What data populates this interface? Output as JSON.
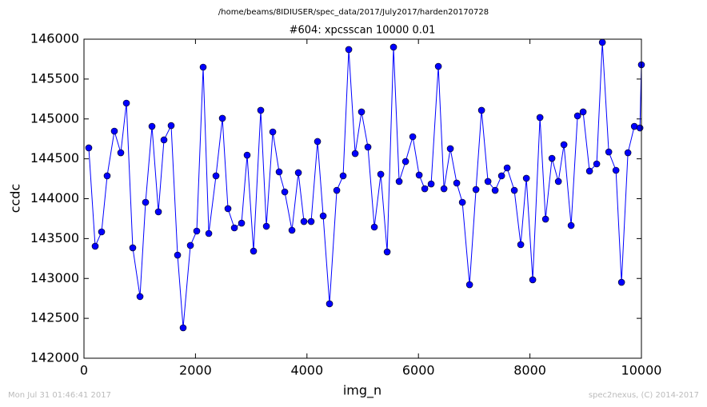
{
  "chart_data": {
    "type": "line",
    "suptitle": "/home/beams/8IDIUSER/spec_data/2017/July2017/harden20170728",
    "title": "#604: xpcsscan 10000 0.01",
    "xlabel": "img_n",
    "ylabel": "ccdc",
    "color": "#0000ff",
    "x": [
      86,
      201,
      316,
      416,
      545,
      660,
      761,
      875,
      1005,
      1105,
      1220,
      1335,
      1435,
      1564,
      1679,
      1779,
      1909,
      2023,
      2138,
      2239,
      2368,
      2483,
      2583,
      2698,
      2827,
      2927,
      3042,
      3171,
      3272,
      3387,
      3501,
      3602,
      3731,
      3846,
      3946,
      4075,
      4190,
      4291,
      4405,
      4535,
      4649,
      4750,
      4865,
      4979,
      5094,
      5209,
      5324,
      5439,
      5553,
      5654,
      5769,
      5898,
      6013,
      6113,
      6228,
      6357,
      6458,
      6572,
      6687,
      6788,
      6917,
      7032,
      7132,
      7247,
      7376,
      7491,
      7591,
      7720,
      7835,
      7936,
      8050,
      8180,
      8280,
      8395,
      8510,
      8610,
      8739,
      8854,
      8954,
      9069,
      9198,
      9299,
      9414,
      9543,
      9643,
      9758,
      9873,
      9973,
      10000
    ],
    "values": [
      144637,
      143404,
      143584,
      144286,
      144847,
      144576,
      145198,
      143384,
      142773,
      143955,
      144907,
      143835,
      144737,
      144917,
      143293,
      142381,
      143414,
      143594,
      145649,
      143564,
      144286,
      145008,
      143875,
      143634,
      143694,
      144546,
      143343,
      145108,
      143654,
      144837,
      144336,
      144085,
      143604,
      144326,
      143714,
      143714,
      144717,
      143784,
      142682,
      144105,
      144286,
      145870,
      144566,
      145088,
      144647,
      143644,
      144306,
      143333,
      145900,
      144216,
      144466,
      144777,
      144296,
      144125,
      144185,
      145659,
      144125,
      144627,
      144196,
      143955,
      142922,
      144115,
      145108,
      144216,
      144105,
      144286,
      144386,
      144105,
      143424,
      144256,
      142983,
      145018,
      143744,
      144506,
      144216,
      144677,
      143664,
      145038,
      145088,
      144346,
      144436,
      145960,
      144586,
      144356,
      142952,
      144576,
      144907,
      144887,
      145679
    ],
    "xlim": [
      0,
      10000
    ],
    "xticks": [
      0,
      2000,
      4000,
      6000,
      8000,
      10000
    ],
    "ylim": [
      142000,
      146000
    ],
    "yticks": [
      142000,
      142500,
      143000,
      143500,
      144000,
      144500,
      145000,
      145500,
      146000
    ]
  },
  "footer": {
    "left": "Mon Jul 31 01:46:41 2017",
    "right": "spec2nexus, (C) 2014-2017"
  }
}
